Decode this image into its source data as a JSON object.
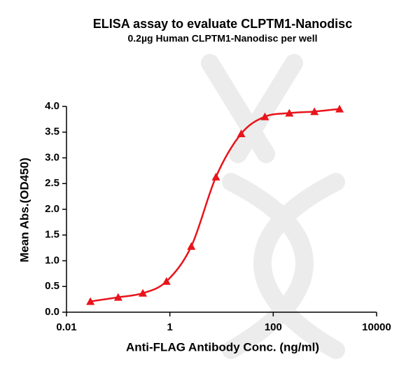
{
  "chart_data": {
    "type": "scatter",
    "title": "ELISA assay to evaluate CLPTM1-Nanodisc",
    "subtitle": "0.2µg Human CLPTM1-Nanodisc per well",
    "x_label": "Anti-FLAG Antibody Conc. (ng/ml)",
    "y_label": "Mean Abs.(OD450)",
    "x_scale": "log",
    "xlim": [
      0.01,
      10000
    ],
    "xticks": [
      0.01,
      1,
      100,
      10000
    ],
    "ylim": [
      0,
      4
    ],
    "yticks": [
      {
        "value": 0,
        "label": "0.0"
      },
      {
        "value": 0.5,
        "label": "0.5"
      },
      {
        "value": 1,
        "label": "1.0"
      },
      {
        "value": 1.5,
        "label": "1.5"
      },
      {
        "value": 2,
        "label": "2.0"
      },
      {
        "value": 2.5,
        "label": "2.5"
      },
      {
        "value": 3,
        "label": "3.0"
      },
      {
        "value": 3.5,
        "label": "3.5"
      },
      {
        "value": 4,
        "label": "4.0"
      }
    ],
    "series": [
      {
        "color": "#e8141b",
        "x": [
          0.029,
          0.1,
          0.3,
          0.86,
          2.6,
          7.8,
          24,
          69,
          205,
          627,
          1920
        ],
        "values": [
          0.21,
          0.29,
          0.37,
          0.6,
          1.28,
          2.63,
          3.47,
          3.8,
          3.87,
          3.9,
          3.95
        ]
      }
    ]
  }
}
